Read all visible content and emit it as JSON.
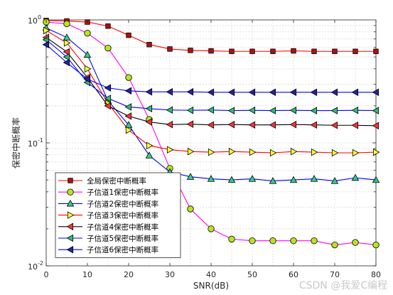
{
  "chart_data": {
    "type": "line",
    "xlabel": "SNR(dB)",
    "ylabel": "保密中断概率",
    "xlim": [
      0,
      80
    ],
    "ylim": [
      0.01,
      1
    ],
    "yscale": "log",
    "grid": true,
    "legend_position": "bottom-left",
    "x_ticks": [
      0,
      10,
      20,
      30,
      40,
      50,
      60,
      70,
      80
    ],
    "x_tick_labels": [
      "0",
      "10",
      "20",
      "30",
      "40",
      "50",
      "60",
      "70",
      "80"
    ],
    "y_ticks": [
      0.01,
      0.1,
      1
    ],
    "y_tick_labels": [
      "10",
      "10",
      "10"
    ],
    "y_tick_exponents": [
      "-2",
      "-1",
      "0"
    ],
    "x": [
      0,
      5,
      10,
      15,
      20,
      25,
      30,
      35,
      40,
      45,
      50,
      55,
      60,
      65,
      70,
      75,
      80
    ],
    "series": [
      {
        "name": "全局保密中断概率",
        "color": "#ff0000",
        "face": "#b01010",
        "marker": "square",
        "values": [
          0.99,
          0.98,
          0.96,
          0.89,
          0.75,
          0.63,
          0.58,
          0.565,
          0.56,
          0.555,
          0.555,
          0.555,
          0.56,
          0.555,
          0.555,
          0.555,
          0.555
        ]
      },
      {
        "name": "子信道1保密中断概率",
        "color": "#ff00ff",
        "face": "#b4e61e",
        "marker": "circle",
        "values": [
          0.96,
          0.93,
          0.78,
          0.59,
          0.34,
          0.155,
          0.062,
          0.029,
          0.02,
          0.0165,
          0.016,
          0.016,
          0.016,
          0.016,
          0.0148,
          0.0155,
          0.0148
        ]
      },
      {
        "name": "子信道2保密中断概率",
        "color": "#0000ff",
        "face": "#33cc88",
        "marker": "triangle-up",
        "values": [
          0.86,
          0.72,
          0.52,
          0.22,
          0.14,
          0.079,
          0.058,
          0.053,
          0.051,
          0.05,
          0.051,
          0.049,
          0.05,
          0.051,
          0.049,
          0.052,
          0.05
        ]
      },
      {
        "name": "子信道3保密中断概率",
        "color": "#ff0000",
        "face": "#ffff33",
        "marker": "triangle-right",
        "values": [
          0.82,
          0.65,
          0.4,
          0.21,
          0.127,
          0.095,
          0.088,
          0.085,
          0.084,
          0.085,
          0.084,
          0.083,
          0.085,
          0.084,
          0.083,
          0.083,
          0.084
        ]
      },
      {
        "name": "子信道4保密中断概率",
        "color": "#000000",
        "face": "#ff3333",
        "marker": "triangle-left",
        "values": [
          0.72,
          0.55,
          0.34,
          0.2,
          0.165,
          0.148,
          0.141,
          0.142,
          0.14,
          0.141,
          0.14,
          0.14,
          0.141,
          0.14,
          0.139,
          0.139,
          0.138
        ]
      },
      {
        "name": "子信道5保密中断概率",
        "color": "#0000ff",
        "face": "#33bb77",
        "marker": "triangle-left",
        "values": [
          0.69,
          0.5,
          0.31,
          0.23,
          0.196,
          0.19,
          0.185,
          0.184,
          0.185,
          0.183,
          0.184,
          0.183,
          0.184,
          0.183,
          0.183,
          0.184,
          0.183
        ]
      },
      {
        "name": "子信道6保密中断概率",
        "color": "#0000ff",
        "face": "#2222aa",
        "marker": "triangle-left",
        "values": [
          0.63,
          0.45,
          0.33,
          0.28,
          0.265,
          0.26,
          0.26,
          0.26,
          0.258,
          0.258,
          0.258,
          0.258,
          0.258,
          0.258,
          0.258,
          0.258,
          0.258
        ]
      }
    ]
  },
  "watermark": "CSDN @我爱C编程"
}
